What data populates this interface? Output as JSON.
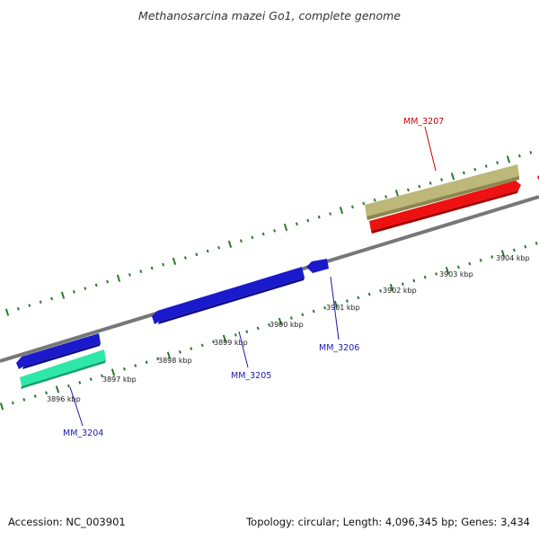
{
  "title": "Methanosarcina mazei Go1, complete genome",
  "footer": {
    "accession": "Accession: NC_003901",
    "topology": "Topology: circular; Length: 4,096,345 bp; Genes: 3,434"
  },
  "colors": {
    "backbone": "#777777",
    "ticks": "#2a7a2a",
    "forward_gene": "#d40000",
    "reverse_gene": "#1a1acc",
    "gene_tan": "#bdb77a",
    "gene_teal": "#2ee8a8",
    "label_red": "#cc0000",
    "label_blue": "#1a1aaa"
  },
  "scale_labels": [
    "3896 kbp",
    "3897 kbp",
    "3898 kbp",
    "3899 kbp",
    "3900 kbp",
    "3901 kbp",
    "3902 kbp",
    "3903 kbp",
    "3904 kbp"
  ],
  "genes": [
    {
      "label": "MM_3204",
      "strand": "reverse",
      "color": "label_blue"
    },
    {
      "label": "MM_3205",
      "strand": "reverse",
      "color": "label_blue"
    },
    {
      "label": "MM_3206",
      "strand": "reverse",
      "color": "label_blue"
    },
    {
      "label": "MM_3207",
      "strand": "forward",
      "color": "label_red"
    }
  ]
}
